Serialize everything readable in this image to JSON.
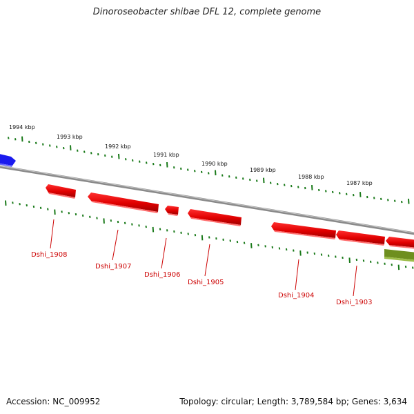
{
  "title": "Dinoroseobacter shibae DFL 12, complete genome",
  "footer": {
    "accession": "Accession: NC_009952",
    "topology": "Topology: circular; Length: 3,789,584 bp; Genes: 3,634"
  },
  "colors": {
    "gene": "#ee0000",
    "gene_dark": "#aa0000",
    "gene_light": "#ff7070",
    "tick": "#1a7a1a",
    "backbone": "#8a8a8a",
    "blue_feature": "#1a1aee",
    "olive_feature": "#6e8f1f",
    "label": "#cc0000"
  },
  "kbp_labels": [
    "1994 kbp",
    "1993 kbp",
    "1992 kbp",
    "1991 kbp",
    "1990 kbp",
    "1989 kbp",
    "1988 kbp",
    "1987 kbp"
  ],
  "genes": [
    {
      "name": "Dshi_1908"
    },
    {
      "name": "Dshi_1907"
    },
    {
      "name": "Dshi_1906"
    },
    {
      "name": "Dshi_1905"
    },
    {
      "name": "Dshi_1904"
    },
    {
      "name": "Dshi_1903"
    }
  ]
}
